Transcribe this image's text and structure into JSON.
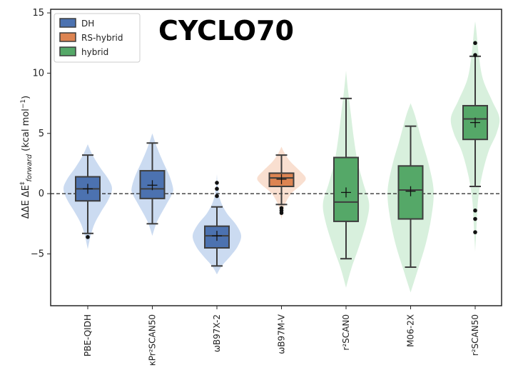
{
  "chart_data": {
    "type": "violin+box",
    "title": "CYCLO70",
    "ylabel_parts": {
      "pre": "ΔΔE ΔE",
      "sup": "‡",
      "sub": "forward",
      "post": " (kcal mol",
      "post_sup": "−1",
      "end": ")"
    },
    "ylim": [
      -9.3,
      15.3
    ],
    "yticks": [
      -5,
      0,
      5,
      10,
      15
    ],
    "ytick_labels": [
      "−5",
      "0",
      "5",
      "10",
      "15"
    ],
    "reference_line": 0,
    "grid": false,
    "legend_position": "top-left",
    "legend": [
      {
        "label": "DH",
        "color": "#4c72b0"
      },
      {
        "label": "RS-hybrid",
        "color": "#dd8452"
      },
      {
        "label": "hybrid",
        "color": "#55a868"
      }
    ],
    "categories": [
      {
        "label": "PBE-QIDH",
        "group": "DH",
        "color": "#4c72b0",
        "violin_color": "#c5d7f0",
        "q1": -0.6,
        "median": 0.4,
        "q3": 1.4,
        "whisker_low": -3.3,
        "whisker_high": 3.2,
        "mean": 0.4,
        "outliers": [
          -3.6
        ],
        "violin": {
          "y": [
            -4.6,
            -3.5,
            -2.5,
            -1.5,
            -0.5,
            0.4,
            1.2,
            2.2,
            3.2,
            4.1
          ],
          "w": [
            0,
            0.12,
            0.28,
            0.55,
            0.85,
            1.0,
            0.85,
            0.5,
            0.2,
            0
          ]
        }
      },
      {
        "label": "κPr²SCAN50",
        "group": "DH",
        "color": "#4c72b0",
        "violin_color": "#c5d7f0",
        "q1": -0.4,
        "median": 0.4,
        "q3": 1.9,
        "whisker_low": -2.5,
        "whisker_high": 4.2,
        "mean": 0.7,
        "outliers": [],
        "violin": {
          "y": [
            -3.5,
            -2.3,
            -1.0,
            0.0,
            0.5,
            1.5,
            2.6,
            3.8,
            5.0
          ],
          "w": [
            0,
            0.2,
            0.55,
            0.82,
            0.85,
            0.7,
            0.45,
            0.2,
            0
          ]
        }
      },
      {
        "label": "ωB97X-2",
        "group": "DH",
        "color": "#4c72b0",
        "violin_color": "#c5d7f0",
        "q1": -4.5,
        "median": -3.5,
        "q3": -2.7,
        "whisker_low": -6.0,
        "whisker_high": -1.1,
        "mean": -3.5,
        "outliers": [
          0.4,
          0.9,
          -0.2
        ],
        "violin": {
          "y": [
            -6.7,
            -6.0,
            -5.2,
            -4.4,
            -3.5,
            -2.6,
            -1.6,
            -0.6,
            0.4,
            1.6
          ],
          "w": [
            0,
            0.2,
            0.55,
            0.85,
            1.0,
            0.8,
            0.4,
            0.15,
            0.05,
            0
          ]
        }
      },
      {
        "label": "ωB97M-V",
        "group": "RS-hybrid",
        "color": "#dd8452",
        "violin_color": "#f8dccb",
        "q1": 0.6,
        "median": 1.3,
        "q3": 1.7,
        "whisker_low": -0.9,
        "whisker_high": 3.2,
        "mean": 1.2,
        "outliers": [
          -1.2,
          -1.4,
          -1.6
        ],
        "violin": {
          "y": [
            -2.1,
            -1.0,
            0.0,
            0.8,
            1.3,
            1.9,
            2.7,
            3.4,
            3.9
          ],
          "w": [
            0,
            0.12,
            0.4,
            0.85,
            1.0,
            0.75,
            0.35,
            0.12,
            0
          ]
        }
      },
      {
        "label": "r²SCAN0",
        "group": "hybrid",
        "color": "#55a868",
        "violin_color": "#d4eed9",
        "q1": -2.3,
        "median": -0.7,
        "q3": 3.0,
        "whisker_low": -5.4,
        "whisker_high": 7.9,
        "mean": 0.1,
        "outliers": [],
        "violin": {
          "y": [
            -7.8,
            -6.2,
            -4.3,
            -2.3,
            -0.8,
            0.8,
            2.6,
            4.6,
            6.6,
            8.6,
            10.2
          ],
          "w": [
            0,
            0.22,
            0.55,
            0.85,
            0.95,
            0.72,
            0.48,
            0.32,
            0.2,
            0.08,
            0
          ]
        }
      },
      {
        "label": "M06-2X",
        "group": "hybrid",
        "color": "#55a868",
        "violin_color": "#d4eed9",
        "q1": -2.1,
        "median": 0.3,
        "q3": 2.3,
        "whisker_low": -6.1,
        "whisker_high": 5.6,
        "mean": 0.2,
        "outliers": [],
        "violin": {
          "y": [
            -8.2,
            -6.3,
            -4.2,
            -2.0,
            0.2,
            2.4,
            4.5,
            6.5,
            7.5
          ],
          "w": [
            0,
            0.3,
            0.62,
            0.85,
            0.95,
            0.75,
            0.45,
            0.18,
            0
          ]
        }
      },
      {
        "label": "r²SCAN50",
        "group": "hybrid",
        "color": "#55a868",
        "violin_color": "#d4eed9",
        "q1": 4.5,
        "median": 6.2,
        "q3": 7.3,
        "whisker_low": 0.6,
        "whisker_high": 11.4,
        "mean": 5.9,
        "outliers": [
          12.5,
          11.5,
          -1.4,
          -2.1,
          -3.2
        ],
        "violin": {
          "y": [
            -4.8,
            -2.5,
            -0.5,
            1.5,
            3.5,
            5.0,
            6.3,
            7.7,
            9.5,
            11.5,
            13.5,
            14.3
          ],
          "w": [
            0,
            0.06,
            0.12,
            0.28,
            0.55,
            0.88,
            1.0,
            0.7,
            0.32,
            0.15,
            0.05,
            0
          ]
        }
      }
    ]
  }
}
